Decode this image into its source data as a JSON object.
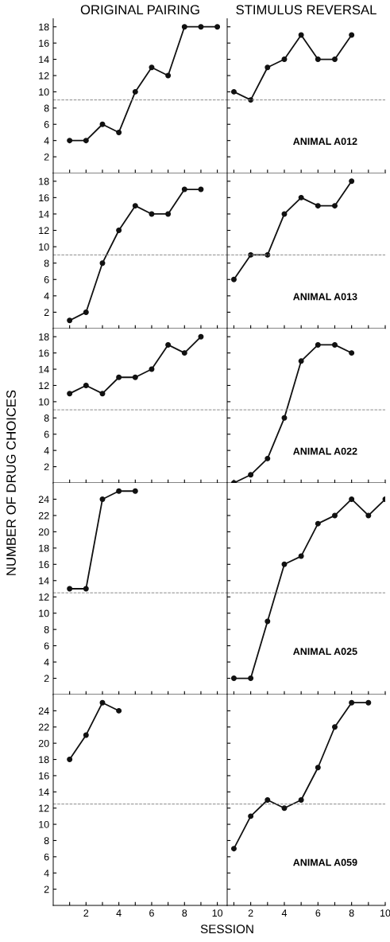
{
  "chart_data": [
    {
      "type": "line",
      "title": "ORIGINAL PAIRING",
      "x": [
        1,
        2,
        3,
        4,
        5,
        6,
        7,
        8,
        9,
        10
      ],
      "series": [
        {
          "color": "#111111",
          "values": [
            4,
            4,
            6,
            5,
            10,
            13,
            12,
            18,
            18,
            18
          ]
        }
      ],
      "xlim": [
        0,
        10.6
      ],
      "ylim": [
        0,
        19
      ],
      "xticks": [
        {
          "value": 1,
          "label": null
        },
        2,
        {
          "value": 3,
          "label": null
        },
        4,
        {
          "value": 5,
          "label": null
        },
        6,
        {
          "value": 7,
          "label": null
        },
        8,
        {
          "value": 9,
          "label": null
        },
        10
      ],
      "yticks": [
        2,
        4,
        6,
        8,
        10,
        12,
        14,
        16,
        18
      ],
      "tick_labels": "y",
      "marker": "circle",
      "line_style": "solid",
      "ref_lines": [
        {
          "axis": "y",
          "value": 9,
          "label": null,
          "color": "#888888",
          "line_style": "dashed"
        }
      ]
    },
    {
      "type": "line",
      "title": "STIMULUS REVERSAL",
      "x": [
        1,
        2,
        3,
        4,
        5,
        6,
        7,
        8
      ],
      "series": [
        {
          "color": "#111111",
          "values": [
            10,
            9,
            13,
            14,
            17,
            14,
            14,
            17
          ]
        }
      ],
      "xlim": [
        0.6,
        10
      ],
      "ylim": [
        0,
        19
      ],
      "xticks": [
        {
          "value": 1,
          "label": null
        },
        2,
        {
          "value": 3,
          "label": null
        },
        4,
        {
          "value": 5,
          "label": null
        },
        6,
        {
          "value": 7,
          "label": null
        },
        8,
        {
          "value": 9,
          "label": null
        },
        10
      ],
      "yticks": [
        2,
        4,
        6,
        8,
        10,
        12,
        14,
        16,
        18
      ],
      "tick_labels": false,
      "marker": "circle",
      "line_style": "solid",
      "ref_lines": [
        {
          "axis": "y",
          "value": 9,
          "label": null,
          "color": "#888888",
          "line_style": "dashed"
        }
      ],
      "annotations": [
        "ANIMAL A012"
      ]
    },
    {
      "type": "line",
      "x": [
        1,
        2,
        3,
        4,
        5,
        6,
        7,
        8,
        9
      ],
      "series": [
        {
          "color": "#111111",
          "values": [
            1,
            2,
            8,
            12,
            15,
            14,
            14,
            17,
            17
          ]
        }
      ],
      "xlim": [
        0,
        10.6
      ],
      "ylim": [
        0,
        19
      ],
      "xticks": [
        {
          "value": 1,
          "label": null
        },
        2,
        {
          "value": 3,
          "label": null
        },
        4,
        {
          "value": 5,
          "label": null
        },
        6,
        {
          "value": 7,
          "label": null
        },
        8,
        {
          "value": 9,
          "label": null
        },
        10
      ],
      "yticks": [
        2,
        4,
        6,
        8,
        10,
        12,
        14,
        16,
        18
      ],
      "tick_labels": "y",
      "marker": "circle",
      "line_style": "solid",
      "ref_lines": [
        {
          "axis": "y",
          "value": 9,
          "label": null,
          "color": "#888888",
          "line_style": "dashed"
        }
      ]
    },
    {
      "type": "line",
      "x": [
        1,
        2,
        3,
        4,
        5,
        6,
        7,
        8
      ],
      "series": [
        {
          "color": "#111111",
          "values": [
            6,
            9,
            9,
            14,
            16,
            15,
            15,
            18
          ]
        }
      ],
      "xlim": [
        0.6,
        10
      ],
      "ylim": [
        0,
        19
      ],
      "xticks": [
        {
          "value": 1,
          "label": null
        },
        2,
        {
          "value": 3,
          "label": null
        },
        4,
        {
          "value": 5,
          "label": null
        },
        6,
        {
          "value": 7,
          "label": null
        },
        8,
        {
          "value": 9,
          "label": null
        },
        10
      ],
      "yticks": [
        2,
        4,
        6,
        8,
        10,
        12,
        14,
        16,
        18
      ],
      "tick_labels": false,
      "marker": "circle",
      "line_style": "solid",
      "ref_lines": [
        {
          "axis": "y",
          "value": 9,
          "label": null,
          "color": "#888888",
          "line_style": "dashed"
        }
      ],
      "annotations": [
        "ANIMAL A013"
      ]
    },
    {
      "type": "line",
      "ylabel": "NUMBER OF DRUG CHOICES",
      "x": [
        1,
        2,
        3,
        4,
        5,
        6,
        7,
        8,
        9
      ],
      "series": [
        {
          "color": "#111111",
          "values": [
            11,
            12,
            11,
            13,
            13,
            14,
            17,
            16,
            18
          ]
        }
      ],
      "xlim": [
        0,
        10.6
      ],
      "ylim": [
        0,
        19
      ],
      "xticks": [
        {
          "value": 1,
          "label": null
        },
        2,
        {
          "value": 3,
          "label": null
        },
        4,
        {
          "value": 5,
          "label": null
        },
        6,
        {
          "value": 7,
          "label": null
        },
        8,
        {
          "value": 9,
          "label": null
        },
        10
      ],
      "yticks": [
        2,
        4,
        6,
        8,
        10,
        12,
        14,
        16,
        18
      ],
      "tick_labels": "y",
      "marker": "circle",
      "line_style": "solid",
      "ref_lines": [
        {
          "axis": "y",
          "value": 9,
          "label": null,
          "color": "#888888",
          "line_style": "dashed"
        }
      ]
    },
    {
      "type": "line",
      "x": [
        1,
        2,
        3,
        4,
        5,
        6,
        7,
        8
      ],
      "series": [
        {
          "color": "#111111",
          "values": [
            0,
            1,
            3,
            8,
            15,
            17,
            17,
            16
          ]
        }
      ],
      "xlim": [
        0.6,
        10
      ],
      "ylim": [
        0,
        19
      ],
      "xticks": [
        {
          "value": 1,
          "label": null
        },
        2,
        {
          "value": 3,
          "label": null
        },
        4,
        {
          "value": 5,
          "label": null
        },
        6,
        {
          "value": 7,
          "label": null
        },
        8,
        {
          "value": 9,
          "label": null
        },
        10
      ],
      "yticks": [
        2,
        4,
        6,
        8,
        10,
        12,
        14,
        16,
        18
      ],
      "tick_labels": false,
      "marker": "circle",
      "line_style": "solid",
      "ref_lines": [
        {
          "axis": "y",
          "value": 9,
          "label": null,
          "color": "#888888",
          "line_style": "dashed"
        }
      ],
      "annotations": [
        "ANIMAL A022"
      ]
    },
    {
      "type": "line",
      "x": [
        1,
        2,
        3,
        4,
        5
      ],
      "series": [
        {
          "color": "#111111",
          "values": [
            13,
            13,
            24,
            25,
            25
          ]
        }
      ],
      "xlim": [
        0,
        10.6
      ],
      "ylim": [
        0,
        26
      ],
      "xticks": [
        {
          "value": 1,
          "label": null
        },
        2,
        {
          "value": 3,
          "label": null
        },
        4,
        {
          "value": 5,
          "label": null
        },
        6,
        {
          "value": 7,
          "label": null
        },
        8,
        {
          "value": 9,
          "label": null
        },
        10
      ],
      "yticks": [
        2,
        4,
        6,
        8,
        10,
        12,
        14,
        16,
        18,
        20,
        22,
        24
      ],
      "tick_labels": "y",
      "marker": "circle",
      "line_style": "solid",
      "ref_lines": [
        {
          "axis": "y",
          "value": 12.5,
          "label": null,
          "color": "#888888",
          "line_style": "dashed"
        }
      ]
    },
    {
      "type": "line",
      "x": [
        1,
        2,
        3,
        4,
        5,
        6,
        7,
        8,
        9,
        10
      ],
      "series": [
        {
          "color": "#111111",
          "values": [
            2,
            2,
            9,
            16,
            17,
            21,
            22,
            24,
            22,
            24
          ]
        }
      ],
      "xlim": [
        0.6,
        10
      ],
      "ylim": [
        0,
        26
      ],
      "xticks": [
        {
          "value": 1,
          "label": null
        },
        2,
        {
          "value": 3,
          "label": null
        },
        4,
        {
          "value": 5,
          "label": null
        },
        6,
        {
          "value": 7,
          "label": null
        },
        8,
        {
          "value": 9,
          "label": null
        },
        10
      ],
      "yticks": [
        2,
        4,
        6,
        8,
        10,
        12,
        14,
        16,
        18,
        20,
        22,
        24
      ],
      "tick_labels": false,
      "marker": "circle",
      "line_style": "solid",
      "ref_lines": [
        {
          "axis": "y",
          "value": 12.5,
          "label": null,
          "color": "#888888",
          "line_style": "dashed"
        }
      ],
      "annotations": [
        "ANIMAL A025"
      ]
    },
    {
      "type": "line",
      "xlabel": "SESSION",
      "x": [
        1,
        2,
        3,
        4
      ],
      "series": [
        {
          "color": "#111111",
          "values": [
            18,
            21,
            25,
            24
          ]
        }
      ],
      "xlim": [
        0,
        10.6
      ],
      "ylim": [
        0,
        26
      ],
      "xticks": [
        {
          "value": 1,
          "label": null
        },
        2,
        {
          "value": 3,
          "label": null
        },
        4,
        {
          "value": 5,
          "label": null
        },
        6,
        {
          "value": 7,
          "label": null
        },
        8,
        {
          "value": 9,
          "label": null
        },
        10
      ],
      "yticks": [
        2,
        4,
        6,
        8,
        10,
        12,
        14,
        16,
        18,
        20,
        22,
        24
      ],
      "marker": "circle",
      "line_style": "solid",
      "ref_lines": [
        {
          "axis": "y",
          "value": 12.5,
          "label": null,
          "color": "#888888",
          "line_style": "dashed"
        }
      ]
    },
    {
      "type": "line",
      "x": [
        1,
        2,
        3,
        4,
        5,
        6,
        7,
        8,
        9
      ],
      "series": [
        {
          "color": "#111111",
          "values": [
            7,
            11,
            13,
            12,
            13,
            17,
            22,
            25,
            25
          ]
        }
      ],
      "xlim": [
        0.6,
        10
      ],
      "ylim": [
        0,
        26
      ],
      "xticks": [
        {
          "value": 1,
          "label": null
        },
        2,
        {
          "value": 3,
          "label": null
        },
        4,
        {
          "value": 5,
          "label": null
        },
        6,
        {
          "value": 7,
          "label": null
        },
        8,
        {
          "value": 9,
          "label": null
        },
        10
      ],
      "yticks": [
        2,
        4,
        6,
        8,
        10,
        12,
        14,
        16,
        18,
        20,
        22,
        24
      ],
      "tick_labels": "x",
      "marker": "circle",
      "line_style": "solid",
      "ref_lines": [
        {
          "axis": "y",
          "value": 12.5,
          "label": null,
          "color": "#888888",
          "line_style": "dashed"
        }
      ],
      "annotations": [
        "ANIMAL A059"
      ]
    }
  ]
}
